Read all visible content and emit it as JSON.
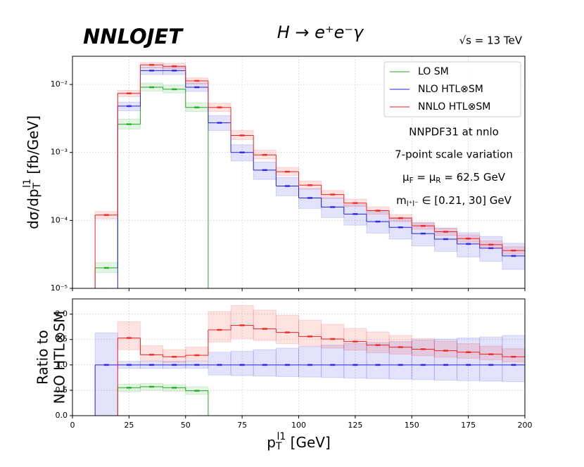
{
  "chart_data": [
    {
      "type": "histogram",
      "yscale": "log",
      "logo": "NNLOJET",
      "title": "H → e⁺e⁻γ",
      "energy": "√s = 13 TeV",
      "annotations": [
        "NNPDF31 at nnlo",
        "7-point scale variation"
      ],
      "scale_label": [
        "μ",
        "F",
        " = μ",
        "R",
        " = 62.5 GeV"
      ],
      "mass_label": [
        "m",
        "l⁺l⁻",
        " ∈ [0.21, 30] GeV"
      ],
      "y_label": [
        "dσ/dp",
        "T",
        "l1",
        " [fb/GeV]"
      ],
      "bins": [
        10,
        20,
        30,
        40,
        50,
        60,
        70,
        80,
        90,
        100,
        110,
        120,
        130,
        140,
        150,
        160,
        170,
        180,
        190,
        200
      ],
      "xlim": [
        0,
        200
      ],
      "xticks": [
        0,
        25,
        50,
        75,
        100,
        125,
        150,
        175,
        200
      ],
      "ylim": [
        1e-05,
        0.026
      ],
      "yticks": [
        {
          "value": 1e-05,
          "label": "10⁻⁵"
        },
        {
          "value": 0.0001,
          "label": "10⁻⁴"
        },
        {
          "value": 0.001,
          "label": "10⁻³"
        },
        {
          "value": 0.01,
          "label": "10⁻²"
        }
      ],
      "grid": true,
      "legend": "upper right",
      "series": [
        {
          "name": "LO SM",
          "color": "#22aa22",
          "values": [
            2e-05,
            0.0026,
            0.0091,
            0.0085,
            0.0046,
            null,
            null,
            null,
            null,
            null,
            null,
            null,
            null,
            null,
            null,
            null,
            null,
            null,
            null
          ],
          "lower": [
            1.7e-05,
            0.0022,
            0.008,
            0.0075,
            0.004,
            null,
            null,
            null,
            null,
            null,
            null,
            null,
            null,
            null,
            null,
            null,
            null,
            null,
            null
          ],
          "upper": [
            2.4e-05,
            0.0031,
            0.0105,
            0.0098,
            0.0054,
            null,
            null,
            null,
            null,
            null,
            null,
            null,
            null,
            null,
            null,
            null,
            null,
            null,
            null
          ]
        },
        {
          "name": "NLO HTL⊗SM",
          "color": "#2222dd",
          "values": [
            null,
            0.0048,
            0.016,
            0.016,
            0.0091,
            0.00273,
            0.001,
            0.00055,
            0.00032,
            0.000214,
            0.000157,
            0.000124,
            9.6e-05,
            7.9e-05,
            6.4e-05,
            5.3e-05,
            4.5e-05,
            3.9e-05,
            3e-05
          ],
          "lower": [
            null,
            0.0041,
            0.014,
            0.014,
            0.0079,
            0.0021,
            0.00075,
            0.0004,
            0.00023,
            0.00015,
            0.00011,
            8.5e-05,
            6.5e-05,
            5.3e-05,
            4.2e-05,
            3.5e-05,
            2.9e-05,
            2.5e-05,
            1.9e-05
          ],
          "upper": [
            null,
            0.0055,
            0.018,
            0.018,
            0.0105,
            0.0035,
            0.0013,
            0.00072,
            0.00043,
            0.00029,
            0.000215,
            0.00017,
            0.000135,
            0.00011,
            9.2e-05,
            7.7e-05,
            6.6e-05,
            5.8e-05,
            4.6e-05
          ]
        },
        {
          "name": "NNLO HTL⊗SM",
          "color": "#ee2222",
          "values": [
            0.00012,
            0.0074,
            0.0194,
            0.0185,
            0.0113,
            0.0046,
            0.00178,
            0.00092,
            0.00052,
            0.00033,
            0.00024,
            0.00018,
            0.000139,
            0.000108,
            8.3e-05,
            6.8e-05,
            5.4e-05,
            4.4e-05,
            3.6e-05
          ],
          "lower": [
            0.000105,
            0.0066,
            0.0175,
            0.017,
            0.0102,
            0.004,
            0.00155,
            0.0008,
            0.00046,
            0.00029,
            0.00021,
            0.00016,
            0.000123,
            9.6e-05,
            7.4e-05,
            6e-05,
            4.8e-05,
            3.9e-05,
            3.2e-05
          ],
          "upper": [
            0.000135,
            0.0082,
            0.021,
            0.0205,
            0.0125,
            0.0053,
            0.0021,
            0.00108,
            0.0006,
            0.00038,
            0.000275,
            0.000205,
            0.000158,
            0.000122,
            9.4e-05,
            7.7e-05,
            6.1e-05,
            5e-05,
            4.1e-05
          ]
        }
      ]
    },
    {
      "type": "histogram",
      "y_label": [
        "Ratio to",
        "NLO HTL⊗SM"
      ],
      "x_label": [
        "p",
        "T",
        "l1",
        " [GeV]"
      ],
      "bins": [
        10,
        20,
        30,
        40,
        50,
        60,
        70,
        80,
        90,
        100,
        110,
        120,
        130,
        140,
        150,
        160,
        170,
        180,
        190,
        200
      ],
      "xlim": [
        0,
        200
      ],
      "xticks": [
        0,
        25,
        50,
        75,
        100,
        125,
        150,
        175,
        200
      ],
      "ylim": [
        0,
        2.3
      ],
      "yticks": [
        {
          "value": 0,
          "label": "0.0"
        },
        0.5,
        {
          "value": 1,
          "label": "1.0"
        },
        1.5,
        {
          "value": 2,
          "label": "2.0"
        }
      ],
      "grid": true,
      "series": [
        {
          "color": "#22aa22",
          "values": [
            null,
            0.55,
            0.57,
            0.55,
            0.49,
            null,
            null,
            null,
            null,
            null,
            null,
            null,
            null,
            null,
            null,
            null,
            null,
            null,
            null
          ],
          "lower": [
            null,
            0.47,
            0.5,
            0.48,
            0.42,
            null,
            null,
            null,
            null,
            null,
            null,
            null,
            null,
            null,
            null,
            null,
            null,
            null,
            null
          ],
          "upper": [
            null,
            0.62,
            0.63,
            0.61,
            0.57,
            null,
            null,
            null,
            null,
            null,
            null,
            null,
            null,
            null,
            null,
            null,
            null,
            null,
            null
          ]
        },
        {
          "color": "#2222dd",
          "values": [
            1,
            1,
            1,
            1,
            1,
            1,
            1,
            1,
            1,
            1,
            1,
            1,
            1,
            1,
            1,
            1,
            1,
            1,
            1
          ],
          "lower": [
            0,
            0.93,
            0.93,
            0.93,
            0.93,
            0.8,
            0.79,
            0.78,
            0.77,
            0.76,
            0.75,
            0.74,
            0.73,
            0.72,
            0.71,
            0.7,
            0.69,
            0.68,
            0.67
          ],
          "upper": [
            1.63,
            1.07,
            1.07,
            1.07,
            1.07,
            1.25,
            1.27,
            1.3,
            1.33,
            1.36,
            1.39,
            1.42,
            1.44,
            1.46,
            1.49,
            1.51,
            1.53,
            1.55,
            1.58
          ]
        },
        {
          "color": "#ee2222",
          "values": [
            null,
            1.53,
            1.2,
            1.16,
            1.19,
            1.69,
            1.78,
            1.71,
            1.64,
            1.56,
            1.51,
            1.46,
            1.39,
            1.35,
            1.31,
            1.28,
            1.25,
            1.21,
            1.16
          ],
          "lower": [
            null,
            1.3,
            1.08,
            1.05,
            1.08,
            1.45,
            1.52,
            1.48,
            1.42,
            1.37,
            1.33,
            1.29,
            1.24,
            1.21,
            1.18,
            1.15,
            1.13,
            1.1,
            1.06
          ],
          "upper": [
            null,
            1.85,
            1.38,
            1.3,
            1.35,
            2.05,
            2.17,
            2.08,
            1.98,
            1.88,
            1.8,
            1.72,
            1.65,
            1.58,
            1.52,
            1.47,
            1.42,
            1.37,
            1.32
          ]
        }
      ]
    }
  ]
}
